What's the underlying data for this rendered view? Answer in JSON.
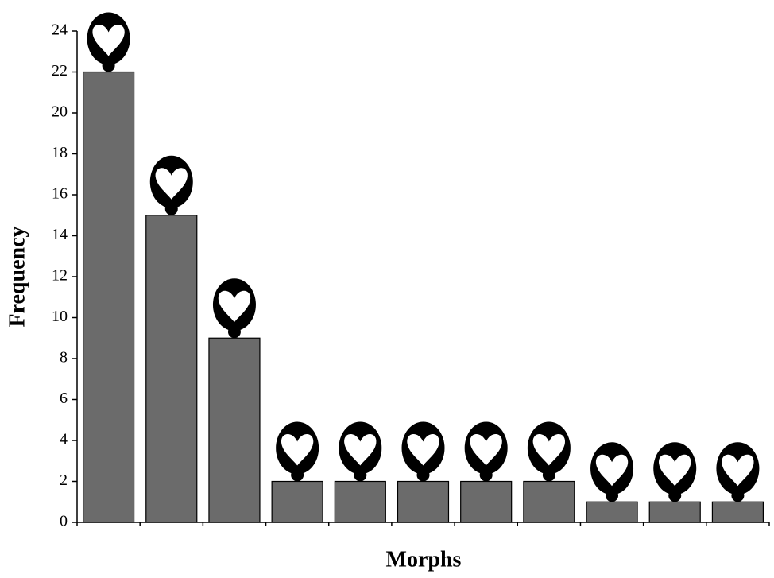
{
  "chart_data": {
    "type": "bar",
    "x_label": "Morphs",
    "y_label": "Frequency",
    "categories": [
      null,
      null,
      null,
      null,
      null,
      null,
      null,
      null,
      null,
      null,
      null
    ],
    "values": [
      22,
      15,
      9,
      2,
      2,
      2,
      2,
      2,
      1,
      1,
      1
    ],
    "color": "#6b6b6b",
    "ylim": [
      0,
      24
    ],
    "yticks": [
      0,
      2,
      4,
      6,
      8,
      10,
      12,
      14,
      16,
      18,
      20,
      22,
      24
    ],
    "grid": false
  }
}
